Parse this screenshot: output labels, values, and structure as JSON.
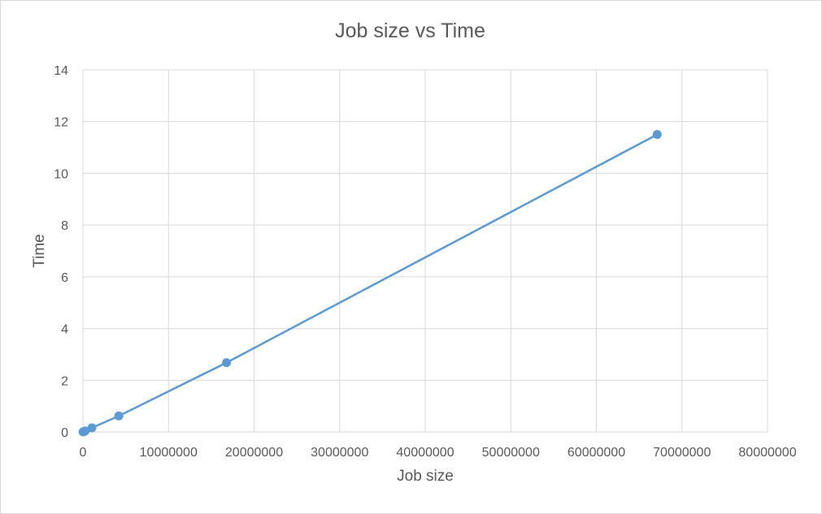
{
  "chart_data": {
    "type": "scatter",
    "title": "Job size vs Time",
    "xlabel": "Job size",
    "ylabel": "Time",
    "xlim": [
      0,
      80000000
    ],
    "ylim": [
      0,
      14
    ],
    "x_ticks": [
      0,
      10000000,
      20000000,
      30000000,
      40000000,
      50000000,
      60000000,
      70000000,
      80000000
    ],
    "y_ticks": [
      0,
      2,
      4,
      6,
      8,
      10,
      12,
      14
    ],
    "x_tick_labels": [
      "0",
      "10000000",
      "20000000",
      "30000000",
      "40000000",
      "50000000",
      "60000000",
      "70000000",
      "80000000"
    ],
    "y_tick_labels": [
      "0",
      "2",
      "4",
      "6",
      "8",
      "10",
      "12",
      "14"
    ],
    "grid": true,
    "legend": "none",
    "lines_connected": true,
    "color": "#5b9bd5",
    "series": [
      {
        "x": [
          16384,
          65536,
          262144,
          1048576,
          4194304,
          16777216,
          67108864
        ],
        "y": [
          0.003,
          0.011,
          0.04,
          0.16,
          0.62,
          2.68,
          11.5
        ]
      }
    ]
  }
}
